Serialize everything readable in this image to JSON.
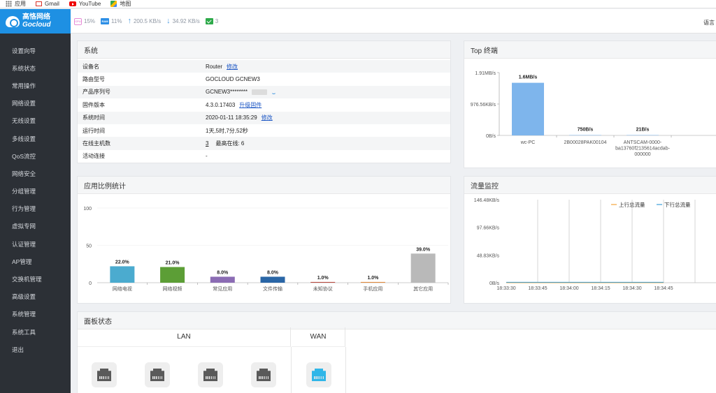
{
  "bookmarks": [
    {
      "label": "应用",
      "icon": "apps-icon"
    },
    {
      "label": "Gmail",
      "icon": "gmail-icon"
    },
    {
      "label": "YouTube",
      "icon": "youtube-icon"
    },
    {
      "label": "地图",
      "icon": "maps-icon"
    }
  ],
  "header": {
    "logo_cn": "高恪网络",
    "logo_en": "Gocloud",
    "cpu_badge": "CPU",
    "cpu": "15%",
    "mem_badge": "RAM",
    "memory": "11%",
    "upload": "200.5 KB/s",
    "download": "34.92 KB/s",
    "connections": "3",
    "language": "语言"
  },
  "sidebar": {
    "items": [
      "设置向导",
      "系统状态",
      "常用操作",
      "网络设置",
      "无线设置",
      "多线设置",
      "QoS流控",
      "网络安全",
      "分组管理",
      "行为管理",
      "虚拟专网",
      "认证管理",
      "AP管理",
      "交换机管理",
      "高级设置",
      "系统管理",
      "系统工具",
      "退出"
    ]
  },
  "system": {
    "title": "系统",
    "rows": [
      {
        "label": "设备名",
        "value": "Router",
        "link": "修改"
      },
      {
        "label": "路由型号",
        "value": "GOCLOUD GCNEW3",
        "link": ""
      },
      {
        "label": "产品序列号",
        "value": "GCNEW3********",
        "link": ""
      },
      {
        "label": "固件版本",
        "value": "4.3.0.17403",
        "link": "升级固件"
      },
      {
        "label": "系统时间",
        "value": "2020-01-11 18:35:29",
        "link": "修改"
      },
      {
        "label": "运行时间",
        "value": "1天,5时,7分,52秒",
        "link": ""
      },
      {
        "label": "在线主机数",
        "value": "3",
        "extra": "最高在线:  6",
        "link": ""
      },
      {
        "label": "活动连接",
        "value": "-",
        "link": ""
      }
    ]
  },
  "top_terminals": {
    "title": "Top 终端",
    "chart_data": {
      "type": "bar",
      "categories": [
        "wc-PC",
        "2B00028PAK00104",
        "ANTSCAM-0000-ba13760f2135614acdab-000000"
      ],
      "category_lines": [
        [
          "wc-PC"
        ],
        [
          "2B00028PAK00104"
        ],
        [
          "ANTSCAM-0000-",
          "ba13760f2135614acdab-",
          "000000"
        ]
      ],
      "values": [
        1.6,
        0.000715,
        2e-05
      ],
      "value_labels": [
        "1.6MB/s",
        "750B/s",
        "21B/s"
      ],
      "ytick_labels": [
        "1.91MB/s",
        "976.56KB/s",
        "0B/s"
      ],
      "ylim": [
        0,
        1.91
      ],
      "color": "#7eb5ec"
    }
  },
  "app_stats": {
    "title": "应用比例统计",
    "chart_data": {
      "type": "bar",
      "categories": [
        "网络电视",
        "网络视频",
        "常见应用",
        "文件传输",
        "未知协议",
        "手机应用",
        "其它应用"
      ],
      "values": [
        22.0,
        21.0,
        8.0,
        8.0,
        1.0,
        1.0,
        39.0
      ],
      "value_labels": [
        "22.0%",
        "21.0%",
        "8.0%",
        "8.0%",
        "1.0%",
        "1.0%",
        "39.0%"
      ],
      "colors": [
        "#4babcf",
        "#5c9e36",
        "#8b6cb4",
        "#2a66a6",
        "#b84a3f",
        "#e08a3c",
        "#b9b9b9"
      ],
      "yticks": [
        0,
        50,
        100
      ],
      "ylim": [
        0,
        100
      ]
    }
  },
  "traffic": {
    "title": "流量监控",
    "chart_data": {
      "type": "line",
      "x": [
        "18:33:30",
        "18:33:45",
        "18:34:00",
        "18:34:15",
        "18:34:30",
        "18:34:45"
      ],
      "ytick_labels": [
        "146.48KB/s",
        "97.66KB/s",
        "48.83KB/s",
        "0B/s"
      ],
      "ylim": [
        0,
        146.48
      ],
      "series": [
        {
          "name": "上行总流量",
          "color": "#f2a33a",
          "values": [
            0,
            0,
            0,
            0,
            0,
            0
          ]
        },
        {
          "name": "下行总流量",
          "color": "#3ba0d8",
          "values": [
            0,
            0,
            0,
            0,
            0,
            0
          ]
        }
      ],
      "legend": "top-right"
    }
  },
  "panel_status": {
    "title": "面板状态",
    "lan_label": "LAN",
    "wan_label": "WAN",
    "lan_ports": 4,
    "wan_ports": 1
  }
}
